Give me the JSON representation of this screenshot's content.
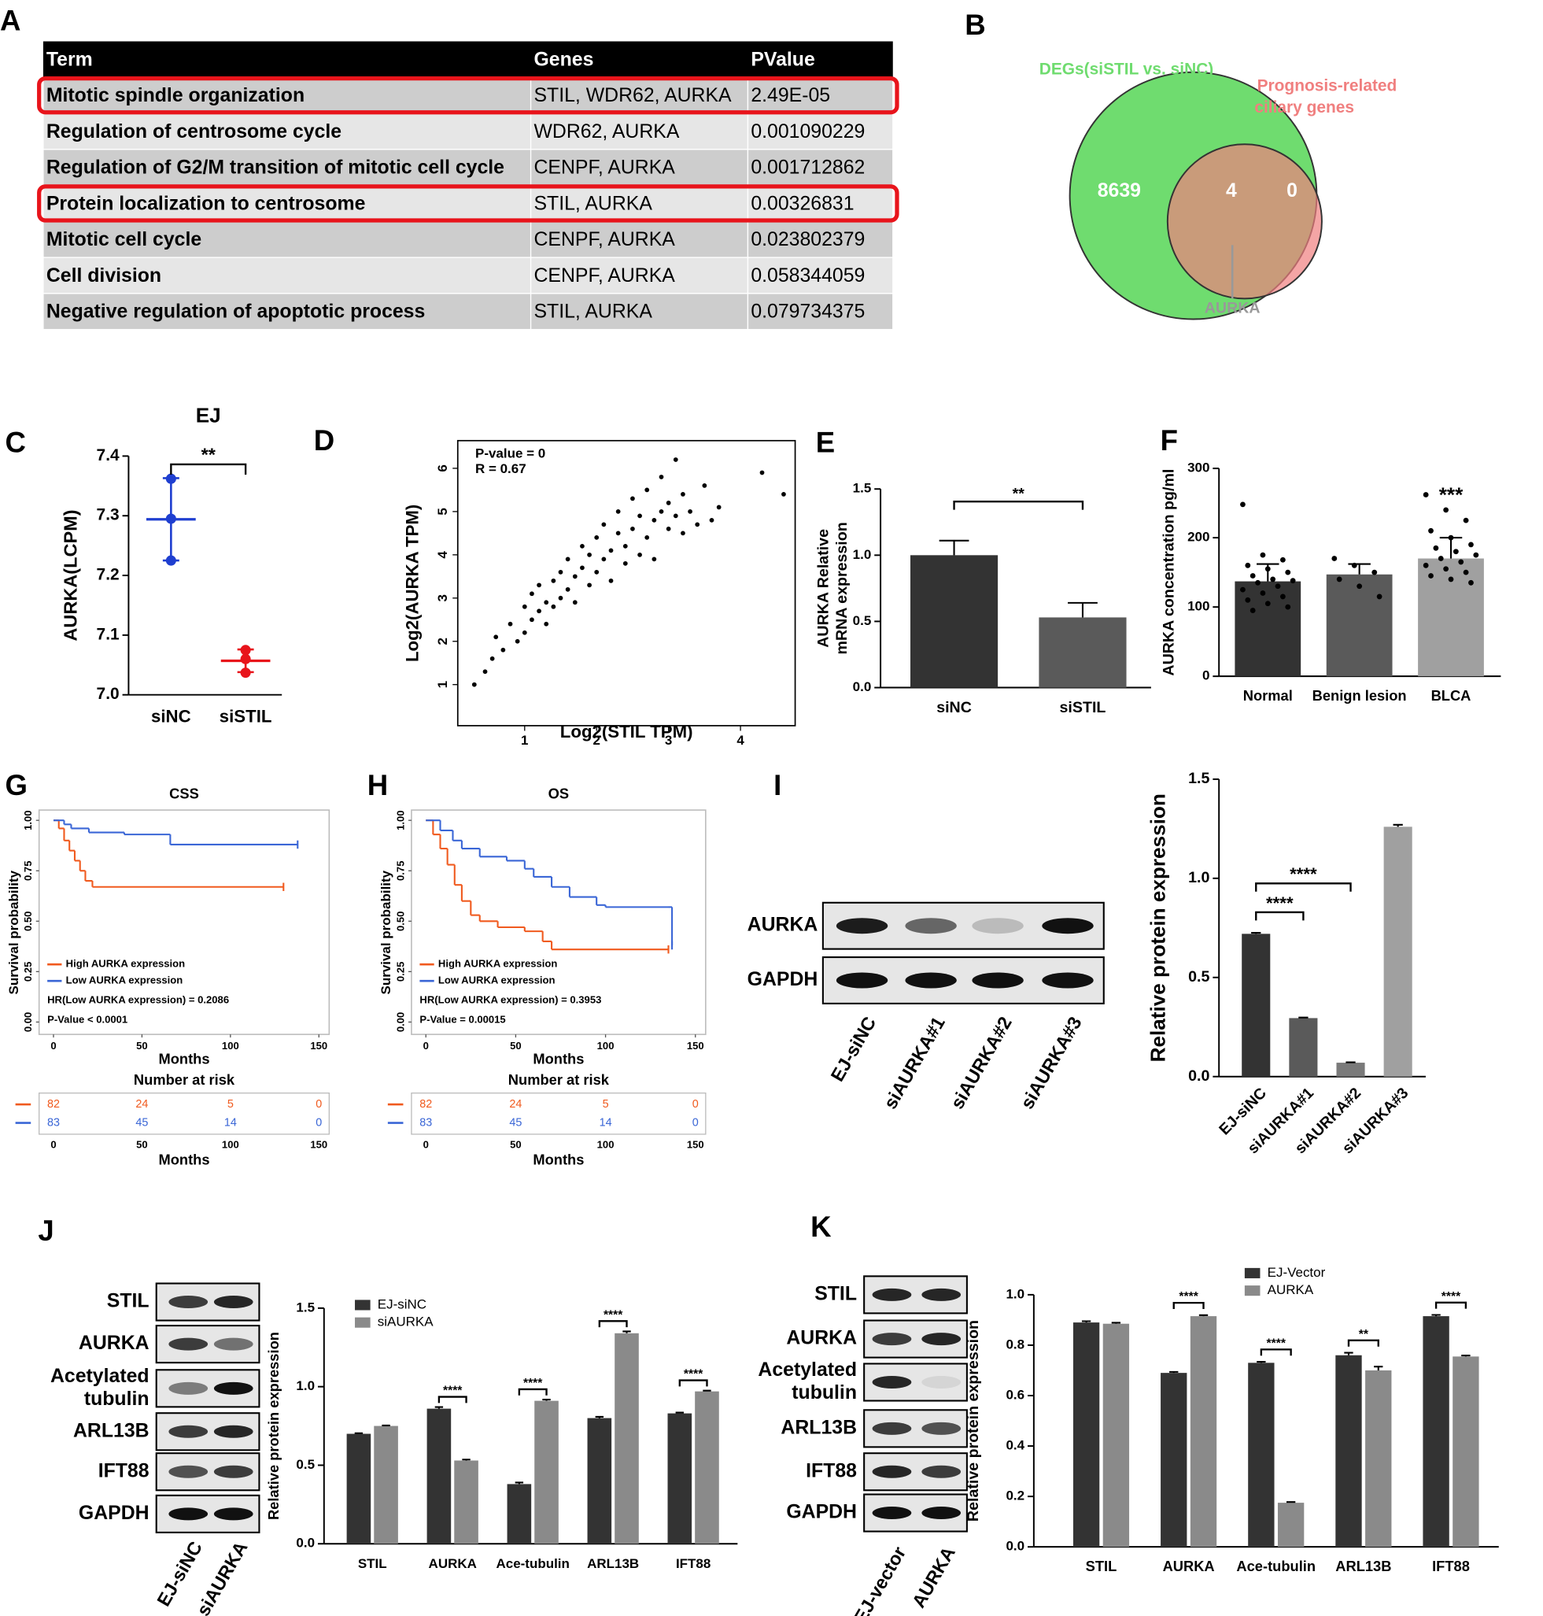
{
  "chart_data": [
    {
      "type": "table",
      "label": "A",
      "columns": [
        "Term",
        "Genes",
        "PValue"
      ],
      "rows": [
        [
          "Mitotic spindle organization",
          "STIL, WDR62, AURKA",
          "2.49E-05"
        ],
        [
          "Regulation of centrosome cycle",
          "WDR62, AURKA",
          "0.001090229"
        ],
        [
          "Regulation of G2/M transition of mitotic cell cycle",
          "CENPF, AURKA",
          "0.001712862"
        ],
        [
          "Protein localization to centrosome",
          "STIL, AURKA",
          "0.00326831"
        ],
        [
          "Mitotic cell cycle",
          "CENPF, AURKA",
          "0.023802379"
        ],
        [
          "Cell division",
          "CENPF, AURKA",
          "0.058344059"
        ],
        [
          "Negative regulation of apoptotic process",
          "STIL, AURKA",
          "0.079734375"
        ]
      ],
      "highlight_rows": [
        0,
        3
      ],
      "highlight_color": "#e8141b"
    },
    {
      "type": "venn",
      "label": "B",
      "sets": [
        {
          "name": [
            "DEGs(siSTIL vs. siNC)"
          ],
          "color": "#6fdc6f"
        },
        {
          "name": [
            "Prognosis-related",
            "ciliary genes"
          ],
          "color": "#f07f7f"
        }
      ],
      "values": [
        8639,
        4,
        0
      ],
      "annotation": "AURKA"
    },
    {
      "type": "dot",
      "label": "C",
      "title": "EJ",
      "ylabel": "AURKA(LCPM)",
      "categories": [
        "siNC",
        "siSTIL"
      ],
      "colors": [
        "#1f3fd0",
        "#e8141b"
      ],
      "points": [
        [
          7.362,
          7.295,
          7.225
        ],
        [
          7.075,
          7.06,
          7.037
        ]
      ],
      "means": [
        7.294,
        7.057
      ],
      "errors": [
        0.069,
        0.019
      ],
      "ylim": [
        7.0,
        7.4
      ],
      "yticks": [
        {
          "value": 7,
          "label": "7.0"
        },
        7.1,
        7.2,
        7.3,
        7.4
      ],
      "significance": [
        {
          "from": 0,
          "to": 1,
          "label": "**"
        }
      ]
    },
    {
      "type": "scatter",
      "label": "D",
      "xlabel": "Log2(STIL TPM)",
      "ylabel": "Log2(AURKA TPM)",
      "annotations": [
        "P-value = 0",
        "R = 0.67"
      ],
      "color": "#000000",
      "x": [
        0.3,
        0.45,
        0.55,
        0.6,
        0.7,
        0.8,
        0.9,
        1.0,
        1.0,
        1.1,
        1.1,
        1.2,
        1.2,
        1.3,
        1.3,
        1.4,
        1.4,
        1.5,
        1.5,
        1.6,
        1.6,
        1.7,
        1.7,
        1.8,
        1.8,
        1.9,
        1.9,
        2.0,
        2.0,
        2.1,
        2.1,
        2.2,
        2.2,
        2.3,
        2.3,
        2.4,
        2.4,
        2.5,
        2.5,
        2.6,
        2.6,
        2.7,
        2.7,
        2.8,
        2.8,
        2.9,
        2.9,
        3.0,
        3.0,
        3.1,
        3.1,
        3.2,
        3.2,
        3.3,
        3.4,
        3.5,
        3.6,
        3.7,
        4.3,
        4.6
      ],
      "values": [
        1.0,
        1.3,
        1.6,
        2.1,
        1.8,
        2.4,
        2.0,
        2.8,
        2.2,
        2.5,
        3.1,
        2.7,
        3.3,
        2.4,
        2.9,
        3.4,
        2.8,
        3.6,
        3.0,
        3.2,
        3.9,
        3.5,
        2.9,
        3.7,
        4.2,
        3.3,
        4.0,
        4.4,
        3.6,
        3.9,
        4.7,
        4.1,
        3.4,
        4.5,
        5.0,
        4.2,
        3.8,
        4.6,
        5.3,
        4.0,
        4.9,
        4.4,
        5.5,
        4.8,
        3.9,
        5.0,
        5.8,
        4.6,
        5.2,
        4.9,
        6.2,
        4.5,
        5.4,
        5.0,
        4.7,
        5.6,
        4.8,
        5.1,
        5.9,
        5.4
      ],
      "xlim": [
        0.07,
        4.76
      ],
      "ylim": [
        0.05,
        6.64
      ],
      "xticks": [
        1,
        2,
        3,
        4
      ],
      "yticks": [
        1,
        2,
        3,
        4,
        5,
        6
      ]
    },
    {
      "type": "bar",
      "label": "E",
      "ylabel": [
        "AURKA Relative",
        "mRNA expression"
      ],
      "categories": [
        "siNC",
        "siSTIL"
      ],
      "values": [
        1.0,
        0.53
      ],
      "errors": [
        0.11,
        0.11
      ],
      "colors": [
        "#333333",
        "#5a5a5a"
      ],
      "ylim": [
        0,
        1.5
      ],
      "yticks": [
        {
          "value": 0,
          "label": "0.0"
        },
        0.5,
        {
          "value": 1,
          "label": "1.0"
        },
        1.5
      ],
      "significance": [
        {
          "from": 0,
          "to": 1,
          "label": "**"
        }
      ]
    },
    {
      "type": "bar",
      "label": "F",
      "ylabel": "AURKA concentration pg/ml",
      "categories": [
        "Normal",
        "Benign lesion",
        "BLCA"
      ],
      "values": [
        137,
        147,
        170
      ],
      "errors": [
        25,
        15,
        30
      ],
      "colors": [
        "#333333",
        "#5a5a5a",
        "#a0a0a0"
      ],
      "points": [
        [
          248,
          175,
          168,
          160,
          155,
          150,
          145,
          140,
          138,
          135,
          130,
          125,
          120,
          115,
          110,
          105,
          100,
          95
        ],
        [
          170,
          160,
          150,
          140,
          130,
          115
        ],
        [
          262,
          240,
          225,
          210,
          200,
          190,
          185,
          180,
          175,
          170,
          165,
          160,
          155,
          150,
          145,
          140,
          135
        ]
      ],
      "ylim": [
        0,
        300
      ],
      "yticks": [
        0,
        100,
        200,
        300
      ],
      "significance": [
        {
          "category": 2,
          "label": "***"
        }
      ]
    },
    {
      "type": "survival",
      "label": "G",
      "title": "CSS",
      "xlabel": "Months",
      "ylabel": "Survival probability",
      "series": [
        {
          "name": "High AURKA expression",
          "color": "#f05a1e",
          "x": [
            0,
            3,
            6,
            9,
            12,
            15,
            18,
            22,
            130
          ],
          "values": [
            1,
            0.96,
            0.9,
            0.85,
            0.8,
            0.75,
            0.7,
            0.67,
            0.67
          ]
        },
        {
          "name": "Low AURKA expression",
          "color": "#3a66d6",
          "x": [
            0,
            6,
            10,
            20,
            40,
            66,
            138
          ],
          "values": [
            1,
            0.98,
            0.96,
            0.94,
            0.93,
            0.88,
            0.88
          ]
        }
      ],
      "annotations": [
        "HR(Low AURKA expression) = 0.2086",
        "P-Value < 0.0001"
      ],
      "xlim": [
        0,
        150
      ],
      "ylim": [
        0,
        1
      ],
      "xticks": [
        0,
        50,
        100,
        150
      ],
      "yticks": [
        {
          "value": 0,
          "label": "0.00"
        },
        0.25,
        {
          "value": 0.5,
          "label": "0.50"
        },
        0.75,
        {
          "value": 1,
          "label": "1.00"
        }
      ],
      "risk": {
        "title": "Number at risk",
        "times": [
          0,
          50,
          100,
          150
        ],
        "counts": [
          [
            82,
            24,
            5,
            0
          ],
          [
            83,
            45,
            14,
            0
          ]
        ],
        "xlabel": "Months"
      }
    },
    {
      "type": "survival",
      "label": "H",
      "title": "OS",
      "xlabel": "Months",
      "ylabel": "Survival probability",
      "series": [
        {
          "name": "High AURKA expression",
          "color": "#f05a1e",
          "x": [
            0,
            4,
            8,
            12,
            16,
            20,
            25,
            30,
            40,
            55,
            65,
            70,
            135
          ],
          "values": [
            1,
            0.93,
            0.86,
            0.78,
            0.68,
            0.6,
            0.53,
            0.5,
            0.47,
            0.45,
            0.4,
            0.36,
            0.36
          ]
        },
        {
          "name": "Low AURKA expression",
          "color": "#3a66d6",
          "x": [
            0,
            8,
            15,
            20,
            30,
            45,
            55,
            60,
            70,
            80,
            95,
            100,
            135,
            137
          ],
          "values": [
            1,
            0.95,
            0.9,
            0.86,
            0.82,
            0.8,
            0.76,
            0.72,
            0.67,
            0.62,
            0.58,
            0.57,
            0.57,
            0.38
          ]
        }
      ],
      "annotations": [
        "HR(Low AURKA expression) = 0.3953",
        "P-Value = 0.00015"
      ],
      "xlim": [
        0,
        150
      ],
      "ylim": [
        0,
        1
      ],
      "xticks": [
        0,
        50,
        100,
        150
      ],
      "yticks": [
        {
          "value": 0,
          "label": "0.00"
        },
        0.25,
        {
          "value": 0.5,
          "label": "0.50"
        },
        0.75,
        {
          "value": 1,
          "label": "1.00"
        }
      ],
      "risk": {
        "title": "Number at risk",
        "times": [
          0,
          50,
          100,
          150
        ],
        "counts": [
          [
            82,
            24,
            5,
            0
          ],
          [
            83,
            45,
            14,
            0
          ]
        ],
        "xlabel": "Months"
      }
    },
    {
      "type": "blot",
      "label": "I",
      "rows": [
        {
          "label": [
            "AURKA"
          ]
        },
        {
          "label": [
            "GAPDH"
          ]
        }
      ],
      "lanes": [
        "EJ-siNC",
        "siAURKA#1",
        "siAURKA#2",
        "siAURKA#3"
      ]
    },
    {
      "type": "bar",
      "ylabel": "Relative protein expression",
      "categories": [
        "EJ-siNC",
        "siAURKA#1",
        "siAURKA#2",
        "siAURKA#3"
      ],
      "values": [
        0.72,
        0.295,
        0.07,
        1.26
      ],
      "errors": [
        0.005,
        0.003,
        0.002,
        0.01
      ],
      "colors": [
        "#333333",
        "#5a5a5a",
        "#7a7a7a",
        "#a0a0a0"
      ],
      "ylim": [
        0,
        1.5
      ],
      "yticks": [
        {
          "value": 0,
          "label": "0.0"
        },
        0.5,
        {
          "value": 1,
          "label": "1.0"
        },
        1.5
      ],
      "significance": [
        {
          "from": 0,
          "to": 1,
          "label": "****"
        },
        {
          "from": 0,
          "to": 2,
          "label": "****"
        }
      ]
    },
    {
      "type": "blot",
      "label": "J",
      "rows": [
        {
          "label": [
            "STIL"
          ]
        },
        {
          "label": [
            "AURKA"
          ]
        },
        {
          "label": [
            "Acetylated",
            "tubulin"
          ]
        },
        {
          "label": [
            "ARL13B"
          ]
        },
        {
          "label": [
            "IFT88"
          ]
        },
        {
          "label": [
            "GAPDH"
          ]
        }
      ],
      "lanes": [
        "EJ-siNC",
        "siAURKA"
      ]
    },
    {
      "type": "bar",
      "ylabel": "Relative protein expression",
      "categories": [
        "STIL",
        "AURKA",
        "Ace-tubulin",
        "ARL13B",
        "IFT88"
      ],
      "series": [
        {
          "name": "EJ-siNC",
          "color": "#333333",
          "values": [
            0.7,
            0.86,
            0.38,
            0.8,
            0.83
          ],
          "errors": [
            0.004,
            0.01,
            0.01,
            0.008,
            0.005
          ]
        },
        {
          "name": "siAURKA",
          "color": "#8a8a8a",
          "values": [
            0.75,
            0.53,
            0.91,
            1.34,
            0.97
          ],
          "errors": [
            0.003,
            0.006,
            0.008,
            0.012,
            0.005
          ]
        }
      ],
      "ylim": [
        0,
        1.5
      ],
      "yticks": [
        {
          "value": 0,
          "label": "0.0"
        },
        0.5,
        {
          "value": 1,
          "label": "1.0"
        },
        1.5
      ],
      "significance": [
        {
          "category": 1,
          "label": "****"
        },
        {
          "category": 2,
          "label": "****"
        },
        {
          "category": 3,
          "label": "****"
        },
        {
          "category": 4,
          "label": "****"
        }
      ]
    },
    {
      "type": "blot",
      "label": "K",
      "rows": [
        {
          "label": [
            "STIL"
          ]
        },
        {
          "label": [
            "AURKA"
          ]
        },
        {
          "label": [
            "Acetylated",
            "tubulin"
          ]
        },
        {
          "label": [
            "ARL13B"
          ]
        },
        {
          "label": [
            "IFT88"
          ]
        },
        {
          "label": [
            "GAPDH"
          ]
        }
      ],
      "lanes": [
        "EJ-vector",
        "AURKA"
      ]
    },
    {
      "type": "bar",
      "ylabel": "Relative protein expression",
      "categories": [
        "STIL",
        "AURKA",
        "Ace-tubulin",
        "ARL13B",
        "IFT88"
      ],
      "series": [
        {
          "name": "EJ-Vector",
          "color": "#333333",
          "values": [
            0.89,
            0.69,
            0.73,
            0.76,
            0.915
          ],
          "errors": [
            0.005,
            0.004,
            0.004,
            0.01,
            0.005
          ]
        },
        {
          "name": "AURKA",
          "color": "#8a8a8a",
          "values": [
            0.885,
            0.915,
            0.175,
            0.7,
            0.755
          ],
          "errors": [
            0.004,
            0.004,
            0.003,
            0.015,
            0.004
          ]
        }
      ],
      "ylim": [
        0,
        1.0
      ],
      "yticks": [
        {
          "value": 0,
          "label": "0.0"
        },
        0.2,
        0.4,
        0.6,
        0.8,
        {
          "value": 1,
          "label": "1.0"
        }
      ],
      "significance": [
        {
          "category": 1,
          "label": "****"
        },
        {
          "category": 2,
          "label": "****"
        },
        {
          "category": 3,
          "label": "**"
        },
        {
          "category": 4,
          "label": "****"
        }
      ]
    }
  ]
}
